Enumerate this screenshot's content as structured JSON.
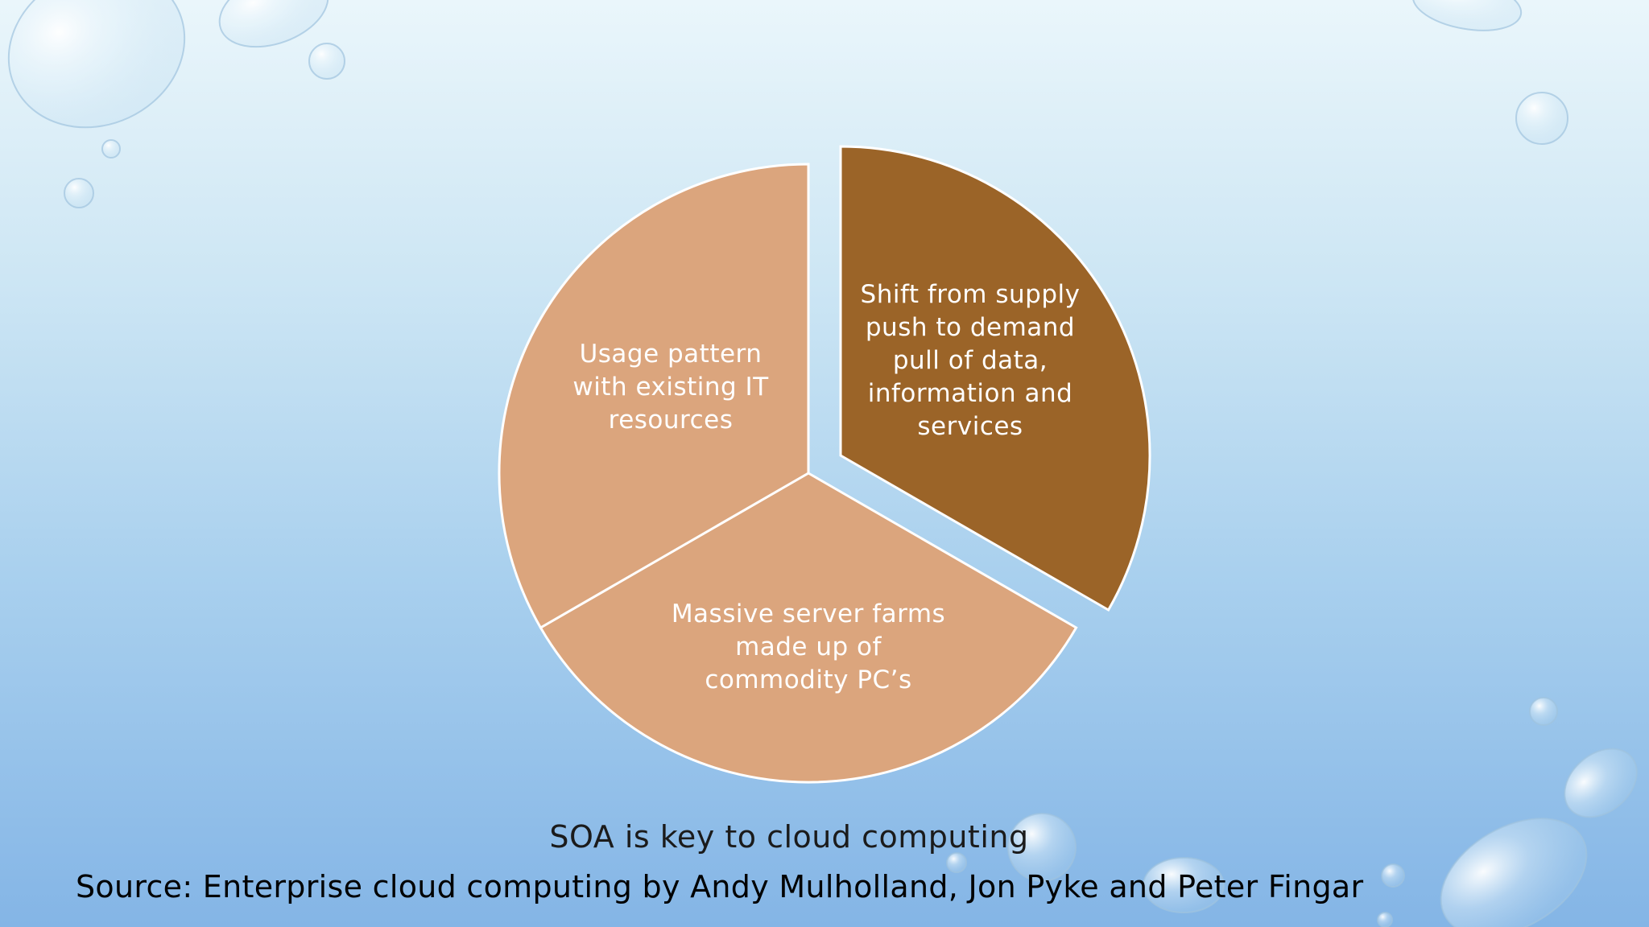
{
  "segments": [
    {
      "label": "Shift from supply push to demand pull of data, information and services",
      "color": "#9b6428"
    },
    {
      "label": "Massive server farms made up of commodity PC’s",
      "color": "#dba57d"
    },
    {
      "label": "Usage pattern with existing IT resources",
      "color": "#dba57d"
    }
  ],
  "caption": "SOA is key to cloud computing",
  "source": "Source: Enterprise cloud computing by Andy Mulholland, Jon Pyke and Peter Fingar",
  "colors": {
    "accent_segment": "#9b6428",
    "light_segment": "#dba57d",
    "segment_text": "#ffffff"
  }
}
